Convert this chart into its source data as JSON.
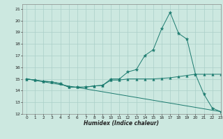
{
  "title": "",
  "xlabel": "Humidex (Indice chaleur)",
  "bg_color": "#cce8e0",
  "grid_color": "#aacfc8",
  "line_color": "#1a7a6e",
  "xlim": [
    -0.5,
    23
  ],
  "ylim": [
    12,
    21.4
  ],
  "xticks": [
    0,
    1,
    2,
    3,
    4,
    5,
    6,
    7,
    8,
    9,
    10,
    11,
    12,
    13,
    14,
    15,
    16,
    17,
    18,
    19,
    20,
    21,
    22,
    23
  ],
  "yticks": [
    12,
    13,
    14,
    15,
    16,
    17,
    18,
    19,
    20,
    21
  ],
  "series1_x": [
    0,
    1,
    2,
    3,
    4,
    5,
    6,
    7,
    8,
    9,
    10,
    11,
    12,
    13,
    14,
    15,
    16,
    17,
    18,
    19,
    20,
    21,
    22,
    23
  ],
  "series1_y": [
    15.0,
    14.9,
    14.8,
    14.75,
    14.6,
    14.3,
    14.3,
    14.3,
    14.4,
    14.45,
    15.0,
    15.0,
    15.6,
    15.8,
    17.0,
    17.5,
    19.3,
    20.7,
    18.9,
    18.4,
    15.4,
    13.7,
    12.5,
    12.2
  ],
  "series2_x": [
    0,
    1,
    2,
    3,
    4,
    5,
    6,
    7,
    8,
    9,
    10,
    11,
    12,
    13,
    14,
    15,
    16,
    17,
    18,
    19,
    20,
    21,
    22,
    23
  ],
  "series2_y": [
    15.0,
    14.9,
    14.8,
    14.75,
    14.6,
    14.3,
    14.3,
    14.3,
    14.4,
    14.45,
    14.9,
    14.9,
    15.0,
    15.0,
    15.0,
    15.0,
    15.05,
    15.1,
    15.2,
    15.3,
    15.4,
    15.4,
    15.4,
    15.4
  ],
  "series3_x": [
    0,
    23
  ],
  "series3_y": [
    15.0,
    12.2
  ]
}
